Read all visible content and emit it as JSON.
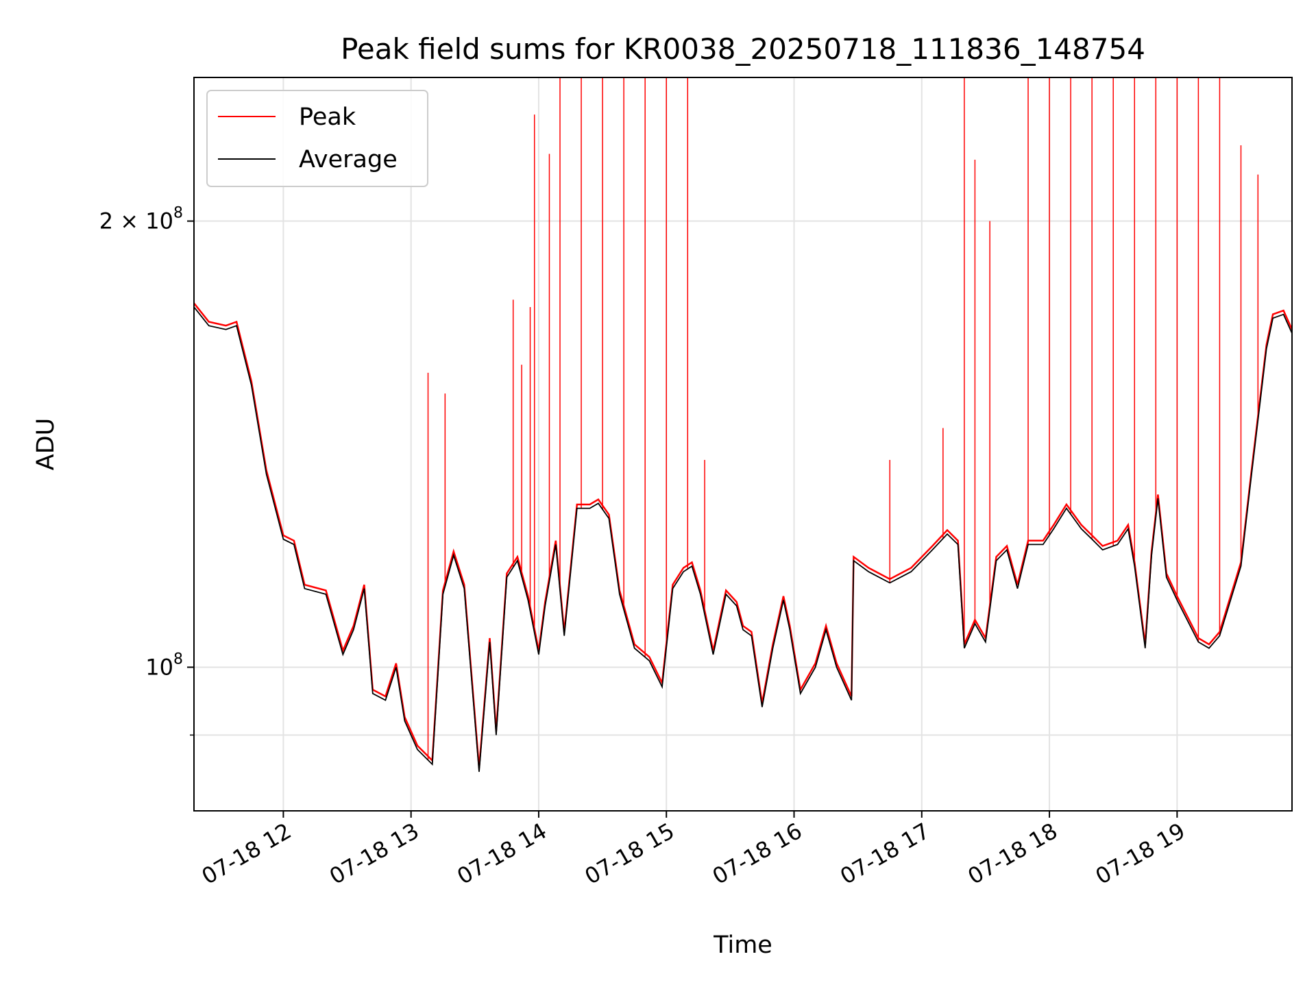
{
  "chart_data": {
    "type": "line",
    "title": "Peak field sums for KR0038_20250718_111836_148754",
    "xlabel": "Time",
    "ylabel": "ADU",
    "y_scale": "log",
    "ylim": [
      80000000,
      250000000
    ],
    "x_range": [
      "07-18 11:18",
      "07-18 19:54"
    ],
    "x_ticks": [
      "07-18 12",
      "07-18 13",
      "07-18 14",
      "07-18 15",
      "07-18 16",
      "07-18 17",
      "07-18 18",
      "07-18 19"
    ],
    "y_ticks": [
      {
        "value": 200000000,
        "base": "2 × 10",
        "exp": "8"
      },
      {
        "value": 100000000,
        "base": "10",
        "exp": "8"
      }
    ],
    "grid": true,
    "legend": {
      "position": "top-left",
      "entries": [
        "Peak",
        "Average"
      ]
    },
    "colors": {
      "Peak": "#ff0000",
      "Average": "#000000"
    },
    "series": [
      {
        "name": "Average",
        "x": [
          "07-18 11:18",
          "07-18 11:25",
          "07-18 11:33",
          "07-18 11:38",
          "07-18 11:45",
          "07-18 11:52",
          "07-18 12:00",
          "07-18 12:05",
          "07-18 12:10",
          "07-18 12:20",
          "07-18 12:28",
          "07-18 12:33",
          "07-18 12:38",
          "07-18 12:42",
          "07-18 12:48",
          "07-18 12:53",
          "07-18 12:57",
          "07-18 13:03",
          "07-18 13:10",
          "07-18 13:15",
          "07-18 13:20",
          "07-18 13:25",
          "07-18 13:32",
          "07-18 13:37",
          "07-18 13:40",
          "07-18 13:45",
          "07-18 13:50",
          "07-18 13:55",
          "07-18 14:00",
          "07-18 14:03",
          "07-18 14:08",
          "07-18 14:12",
          "07-18 14:18",
          "07-18 14:24",
          "07-18 14:28",
          "07-18 14:33",
          "07-18 14:38",
          "07-18 14:45",
          "07-18 14:52",
          "07-18 14:58",
          "07-18 15:03",
          "07-18 15:08",
          "07-18 15:12",
          "07-18 15:16",
          "07-18 15:22",
          "07-18 15:28",
          "07-18 15:33",
          "07-18 15:36",
          "07-18 15:40",
          "07-18 15:45",
          "07-18 15:50",
          "07-18 15:55",
          "07-18 15:58",
          "07-18 16:03",
          "07-18 16:10",
          "07-18 16:15",
          "07-18 16:20",
          "07-18 16:27",
          "07-18 16:28",
          "07-18 16:35",
          "07-18 16:45",
          "07-18 16:55",
          "07-18 17:05",
          "07-18 17:12",
          "07-18 17:17",
          "07-18 17:20",
          "07-18 17:25",
          "07-18 17:30",
          "07-18 17:35",
          "07-18 17:40",
          "07-18 17:45",
          "07-18 17:50",
          "07-18 17:57",
          "07-18 18:02",
          "07-18 18:08",
          "07-18 18:15",
          "07-18 18:20",
          "07-18 18:25",
          "07-18 18:32",
          "07-18 18:37",
          "07-18 18:40",
          "07-18 18:45",
          "07-18 18:48",
          "07-18 18:51",
          "07-18 18:55",
          "07-18 19:00",
          "07-18 19:10",
          "07-18 19:15",
          "07-18 19:20",
          "07-18 19:30",
          "07-18 19:35",
          "07-18 19:42",
          "07-18 19:45",
          "07-18 19:50",
          "07-18 19:54"
        ],
        "values": [
          175000000,
          170000000,
          169000000,
          170000000,
          155000000,
          135000000,
          122000000,
          121000000,
          113000000,
          112000000,
          102000000,
          106000000,
          113000000,
          96000000,
          95000000,
          100000000,
          92000000,
          88000000,
          86000000,
          112000000,
          119000000,
          113000000,
          85000000,
          104000000,
          90000000,
          115000000,
          118000000,
          111000000,
          102000000,
          110000000,
          121000000,
          105000000,
          128000000,
          128000000,
          129000000,
          126000000,
          112000000,
          103000000,
          101000000,
          97000000,
          113000000,
          116000000,
          117000000,
          112000000,
          102000000,
          112000000,
          110000000,
          106000000,
          105000000,
          94000000,
          103000000,
          111000000,
          106000000,
          96000000,
          100000000,
          106000000,
          100000000,
          95000000,
          118000000,
          116000000,
          114000000,
          116000000,
          120000000,
          123000000,
          121000000,
          103000000,
          107000000,
          104000000,
          118000000,
          120000000,
          113000000,
          121000000,
          121000000,
          124000000,
          128000000,
          124000000,
          122000000,
          120000000,
          121000000,
          124000000,
          117000000,
          103000000,
          119000000,
          130000000,
          115000000,
          111000000,
          104000000,
          103000000,
          105000000,
          117000000,
          135000000,
          164000000,
          172000000,
          173000000,
          168000000
        ]
      },
      {
        "name": "Peak",
        "description_of_spikes": "",
        "spikes": [
          {
            "x": "07-18 13:08",
            "value": 158000000
          },
          {
            "x": "07-18 13:16",
            "value": 153000000
          },
          {
            "x": "07-18 13:48",
            "value": 177000000
          },
          {
            "x": "07-18 13:52",
            "value": 160000000
          },
          {
            "x": "07-18 13:56",
            "value": 175000000
          },
          {
            "x": "07-18 13:58",
            "value": 236000000
          },
          {
            "x": "07-18 14:05",
            "value": 222000000
          },
          {
            "x": "07-18 14:10",
            "value": 250000000
          },
          {
            "x": "07-18 14:20",
            "value": 250000000
          },
          {
            "x": "07-18 14:30",
            "value": 250000000
          },
          {
            "x": "07-18 14:40",
            "value": 250000000
          },
          {
            "x": "07-18 14:50",
            "value": 250000000
          },
          {
            "x": "07-18 15:00",
            "value": 250000000
          },
          {
            "x": "07-18 15:10",
            "value": 250000000
          },
          {
            "x": "07-18 15:18",
            "value": 138000000
          },
          {
            "x": "07-18 16:45",
            "value": 138000000
          },
          {
            "x": "07-18 17:10",
            "value": 145000000
          },
          {
            "x": "07-18 17:20",
            "value": 250000000
          },
          {
            "x": "07-18 17:25",
            "value": 220000000
          },
          {
            "x": "07-18 17:32",
            "value": 200000000
          },
          {
            "x": "07-18 17:50",
            "value": 250000000
          },
          {
            "x": "07-18 18:00",
            "value": 250000000
          },
          {
            "x": "07-18 18:10",
            "value": 250000000
          },
          {
            "x": "07-18 18:20",
            "value": 250000000
          },
          {
            "x": "07-18 18:30",
            "value": 250000000
          },
          {
            "x": "07-18 18:40",
            "value": 250000000
          },
          {
            "x": "07-18 18:50",
            "value": 250000000
          },
          {
            "x": "07-18 19:00",
            "value": 250000000
          },
          {
            "x": "07-18 19:10",
            "value": 250000000
          },
          {
            "x": "07-18 19:20",
            "value": 250000000
          },
          {
            "x": "07-18 19:30",
            "value": 225000000
          },
          {
            "x": "07-18 19:38",
            "value": 215000000
          }
        ]
      }
    ]
  }
}
